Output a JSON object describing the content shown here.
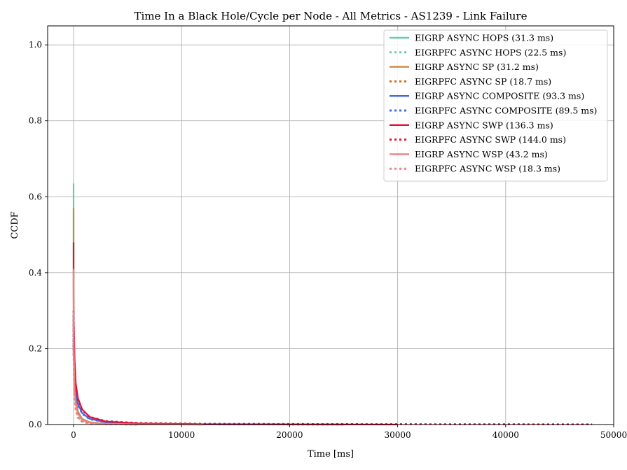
{
  "chart_data": {
    "type": "line",
    "title": "Time In a Black Hole/Cycle per Node - All Metrics - AS1239 - Link Failure",
    "xlabel": "Time [ms]",
    "ylabel": "CCDF",
    "xlim": [
      -2400,
      50000
    ],
    "ylim": [
      0.0,
      1.05
    ],
    "x_ticks": [
      0,
      10000,
      20000,
      30000,
      40000,
      50000
    ],
    "x_tick_labels": [
      "0",
      "10000",
      "20000",
      "30000",
      "40000",
      "50000"
    ],
    "y_ticks": [
      0.0,
      0.2,
      0.4,
      0.6,
      0.8,
      1.0
    ],
    "y_tick_labels": [
      "0.0",
      "0.2",
      "0.4",
      "0.6",
      "0.8",
      "1.0"
    ],
    "grid": true,
    "legend_position": "top-right",
    "series": [
      {
        "name": "EIGRP ASYNC HOPS (31.3 ms)",
        "color": "#66cdaa",
        "style": "solid",
        "x": [
          0,
          0,
          50,
          100,
          200,
          400,
          800,
          1500,
          3000,
          6000,
          12000
        ],
        "y": [
          0.635,
          0.35,
          0.2,
          0.12,
          0.07,
          0.035,
          0.015,
          0.006,
          0.002,
          0.0005,
          0.0
        ]
      },
      {
        "name": "EIGRPFC ASYNC HOPS (22.5 ms)",
        "color": "#66cdaa",
        "style": "dotted",
        "x": [
          0,
          0,
          50,
          100,
          200,
          400,
          800,
          1500,
          3000,
          6000
        ],
        "y": [
          0.3,
          0.2,
          0.12,
          0.08,
          0.045,
          0.02,
          0.008,
          0.003,
          0.001,
          0.0
        ]
      },
      {
        "name": "EIGRP ASYNC SP (31.2 ms)",
        "color": "#cd853f",
        "style": "solid",
        "x": [
          0,
          0,
          50,
          100,
          200,
          400,
          800,
          1500,
          3000,
          6000,
          12000
        ],
        "y": [
          0.57,
          0.33,
          0.19,
          0.11,
          0.065,
          0.033,
          0.014,
          0.006,
          0.002,
          0.0005,
          0.0
        ]
      },
      {
        "name": "EIGRPFC ASYNC SP (18.7 ms)",
        "color": "#d2691e",
        "style": "dotted",
        "x": [
          0,
          0,
          50,
          100,
          200,
          400,
          800,
          1500,
          3000,
          6000
        ],
        "y": [
          0.29,
          0.19,
          0.11,
          0.075,
          0.04,
          0.018,
          0.007,
          0.003,
          0.001,
          0.0
        ]
      },
      {
        "name": "EIGRP ASYNC COMPOSITE (93.3 ms)",
        "color": "#4169e1",
        "style": "solid",
        "x": [
          0,
          0,
          100,
          200,
          400,
          800,
          1500,
          3000,
          6000,
          12000,
          25000
        ],
        "y": [
          0.3,
          0.2,
          0.13,
          0.09,
          0.055,
          0.03,
          0.015,
          0.006,
          0.002,
          0.0005,
          0.0
        ]
      },
      {
        "name": "EIGRPFC ASYNC COMPOSITE (89.5 ms)",
        "color": "#4169e1",
        "style": "dotted",
        "x": [
          0,
          0,
          100,
          200,
          400,
          800,
          1500,
          3000,
          6000,
          12000,
          25000
        ],
        "y": [
          0.28,
          0.19,
          0.12,
          0.085,
          0.052,
          0.028,
          0.014,
          0.006,
          0.002,
          0.0005,
          0.0
        ]
      },
      {
        "name": "EIGRP ASYNC SWP (136.3 ms)",
        "color": "#dc143c",
        "style": "solid",
        "x": [
          0,
          0,
          100,
          200,
          400,
          800,
          1500,
          3000,
          6000,
          12000,
          20000,
          30000
        ],
        "y": [
          0.48,
          0.3,
          0.17,
          0.11,
          0.07,
          0.04,
          0.02,
          0.008,
          0.003,
          0.001,
          0.0005,
          0.0
        ]
      },
      {
        "name": "EIGRPFC ASYNC SWP (144.0 ms)",
        "color": "#dc143c",
        "style": "dotted",
        "x": [
          0,
          0,
          100,
          200,
          400,
          800,
          1500,
          3000,
          6000,
          12000,
          20000,
          30000,
          40000,
          48000
        ],
        "y": [
          0.3,
          0.2,
          0.15,
          0.1,
          0.065,
          0.038,
          0.02,
          0.009,
          0.004,
          0.002,
          0.0015,
          0.001,
          0.0008,
          0.0005
        ]
      },
      {
        "name": "EIGRP ASYNC WSP (43.2 ms)",
        "color": "#f08080",
        "style": "solid",
        "x": [
          0,
          0,
          50,
          100,
          200,
          400,
          800,
          1500,
          3000,
          6000,
          12000
        ],
        "y": [
          0.41,
          0.25,
          0.15,
          0.09,
          0.055,
          0.028,
          0.012,
          0.005,
          0.002,
          0.0005,
          0.0
        ]
      },
      {
        "name": "EIGRPFC ASYNC WSP (18.3 ms)",
        "color": "#f08080",
        "style": "dotted",
        "x": [
          0,
          0,
          50,
          100,
          200,
          400,
          800,
          1500,
          3000,
          6000
        ],
        "y": [
          0.29,
          0.19,
          0.11,
          0.07,
          0.04,
          0.018,
          0.007,
          0.003,
          0.001,
          0.0
        ]
      }
    ]
  }
}
